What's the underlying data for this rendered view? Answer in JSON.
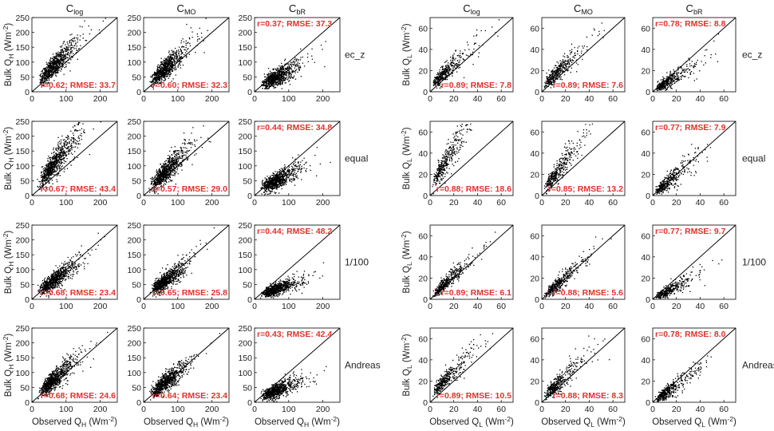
{
  "chart_data": [
    {
      "type": "scatter",
      "name": "sensible-heat-flux",
      "column_titles": [
        {
          "main": "C",
          "sub": "log"
        },
        {
          "main": "C",
          "sub": "MO"
        },
        {
          "main": "C",
          "sub": "bR"
        }
      ],
      "row_labels": [
        "ec_z",
        "equal",
        "1/100",
        "Andreas"
      ],
      "ylabel": {
        "pre": "Bulk Q",
        "sub": "H",
        "mid": " (Wm",
        "sup": "-2",
        "post": ")"
      },
      "xlabel": {
        "pre": "Observed Q",
        "sub": "H",
        "mid": " (Wm",
        "sup": "-2",
        "post": ")"
      },
      "xlim": [
        0,
        250
      ],
      "ylim": [
        0,
        250
      ],
      "xticks": [
        0,
        100,
        200
      ],
      "yticks": [
        0,
        50,
        100,
        150,
        200,
        250
      ],
      "reference_line": "1:1",
      "point_count_approx": 800,
      "observed_distribution": {
        "median": 65,
        "log_sd": 0.4,
        "min": 15,
        "max": 225
      },
      "annotation_color": "#e0322d",
      "panels": [
        [
          {
            "text": "r=0.62; RMSE: 33.7",
            "pos": "bottom-right",
            "fit": [
              1.1,
              15,
              22
            ]
          },
          {
            "text": "r=0.60; RMSE: 32.3",
            "pos": "bottom-right",
            "fit": [
              1.05,
              12,
              22
            ]
          },
          {
            "text": "r=0.37; RMSE: 37.3",
            "pos": "top-left",
            "fit": [
              0.6,
              10,
              18
            ]
          }
        ],
        [
          {
            "text": "r=0.67; RMSE: 43.4",
            "pos": "bottom-right",
            "fit": [
              1.4,
              15,
              28
            ]
          },
          {
            "text": "r=0.57; RMSE: 29.0",
            "pos": "bottom-right",
            "fit": [
              1.1,
              10,
              22
            ]
          },
          {
            "text": "r=0.44; RMSE: 34.8",
            "pos": "top-left",
            "fit": [
              0.55,
              15,
              18
            ]
          }
        ],
        [
          {
            "text": "r=0.68; RMSE: 23.4",
            "pos": "bottom-right",
            "fit": [
              0.85,
              10,
              18
            ]
          },
          {
            "text": "r=0.65; RMSE: 25.8",
            "pos": "bottom-right",
            "fit": [
              0.85,
              8,
              18
            ]
          },
          {
            "text": "r=0.44; RMSE: 48.2",
            "pos": "top-left",
            "fit": [
              0.4,
              8,
              12
            ]
          }
        ],
        [
          {
            "text": "r=0.68; RMSE: 24.6",
            "pos": "bottom-right",
            "fit": [
              1.0,
              12,
              20
            ]
          },
          {
            "text": "r=0.64; RMSE: 23.4",
            "pos": "bottom-right",
            "fit": [
              0.9,
              10,
              18
            ]
          },
          {
            "text": "r=0.43; RMSE: 42.4",
            "pos": "top-left",
            "fit": [
              0.45,
              10,
              15
            ]
          }
        ]
      ]
    },
    {
      "type": "scatter",
      "name": "latent-heat-flux",
      "column_titles": [
        {
          "main": "C",
          "sub": "log"
        },
        {
          "main": "C",
          "sub": "MO"
        },
        {
          "main": "C",
          "sub": "bR"
        }
      ],
      "row_labels": [
        "ec_z",
        "equal",
        "1/100",
        "Andreas"
      ],
      "ylabel": {
        "pre": "Bulk Q",
        "sub": "L",
        "mid": " (Wm",
        "sup": "-2",
        "post": ")"
      },
      "xlabel": {
        "pre": "Observed Q",
        "sub": "L",
        "mid": " (Wm",
        "sup": "-2",
        "post": ")"
      },
      "xlim": [
        0,
        70
      ],
      "ylim": [
        0,
        70
      ],
      "xticks": [
        0,
        20,
        40,
        60
      ],
      "yticks": [
        0,
        20,
        40,
        60
      ],
      "reference_line": "1:1",
      "point_count_approx": 400,
      "observed_distribution": {
        "median": 13,
        "log_sd": 0.6,
        "min": 2,
        "max": 60
      },
      "annotation_color": "#e0322d",
      "panels": [
        [
          {
            "text": "r=0.89; RMSE: 7.8",
            "pos": "bottom-right",
            "fit": [
              1.05,
              5,
              5
            ]
          },
          {
            "text": "r=0.89; RMSE: 7.6",
            "pos": "bottom-right",
            "fit": [
              1.05,
              5,
              5
            ]
          },
          {
            "text": "r=0.78; RMSE: 8.8",
            "pos": "top-left",
            "fit": [
              0.65,
              1,
              4
            ]
          }
        ],
        [
          {
            "text": "r=0.88; RMSE: 18.6",
            "pos": "bottom-right",
            "fit": [
              1.9,
              7,
              7
            ]
          },
          {
            "text": "r=0.85; RMSE: 13.2",
            "pos": "bottom-right",
            "fit": [
              1.5,
              3,
              6
            ]
          },
          {
            "text": "r=0.77; RMSE: 7.9",
            "pos": "top-left",
            "fit": [
              1.0,
              0,
              5
            ]
          }
        ],
        [
          {
            "text": "r=0.89; RMSE: 6.1",
            "pos": "bottom-right",
            "fit": [
              1.0,
              2,
              4
            ]
          },
          {
            "text": "r=0.88; RMSE: 5.6",
            "pos": "bottom-right",
            "fit": [
              1.0,
              1,
              4
            ]
          },
          {
            "text": "r=0.77; RMSE: 9.7",
            "pos": "top-left",
            "fit": [
              0.6,
              0,
              3.5
            ]
          }
        ],
        [
          {
            "text": "r=0.89; RMSE: 10.5",
            "pos": "bottom-right",
            "fit": [
              1.2,
              6,
              5
            ]
          },
          {
            "text": "r=0.88; RMSE: 8.3",
            "pos": "bottom-right",
            "fit": [
              1.1,
              3,
              5
            ]
          },
          {
            "text": "r=0.78; RMSE: 8.0",
            "pos": "top-left",
            "fit": [
              0.8,
              0,
              4
            ]
          }
        ]
      ]
    }
  ]
}
